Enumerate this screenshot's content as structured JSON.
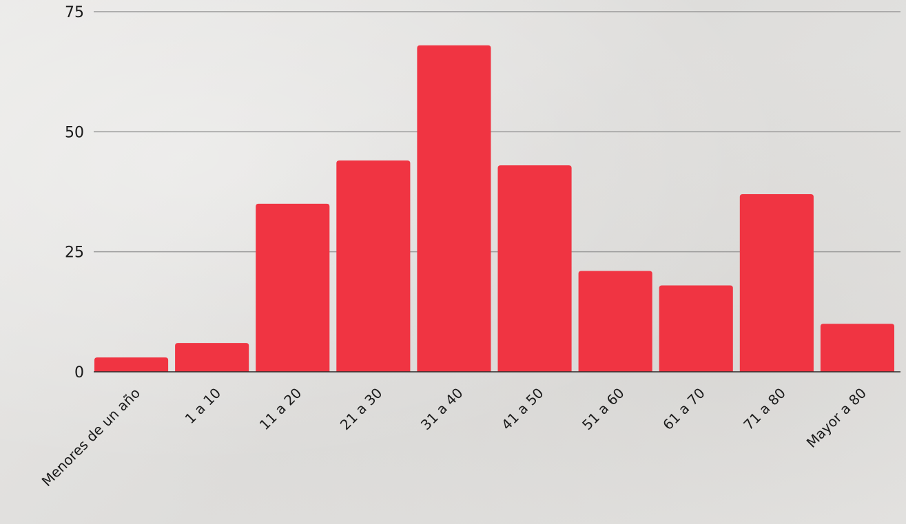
{
  "chart_data": {
    "type": "bar",
    "title": "",
    "xlabel": "",
    "ylabel": "",
    "categories": [
      "Menores de un año",
      "1 a 10",
      "11 a 20",
      "21 a 30",
      "31 a 40",
      "41 a 50",
      "51 a 60",
      "61 a 70",
      "71 a 80",
      "Mayor a 80"
    ],
    "series": [
      {
        "values": [
          3,
          6,
          35,
          44,
          68,
          43,
          21,
          18,
          37,
          10
        ]
      }
    ],
    "ylim": [
      0,
      75
    ],
    "yticks": [
      0,
      25,
      50,
      75
    ],
    "grid": true,
    "legend": "none",
    "colors": {
      "bar": "#f03442",
      "grid": "#9a9a9a",
      "axis": "#2b2b2b",
      "text": "#1a1a1a"
    }
  }
}
